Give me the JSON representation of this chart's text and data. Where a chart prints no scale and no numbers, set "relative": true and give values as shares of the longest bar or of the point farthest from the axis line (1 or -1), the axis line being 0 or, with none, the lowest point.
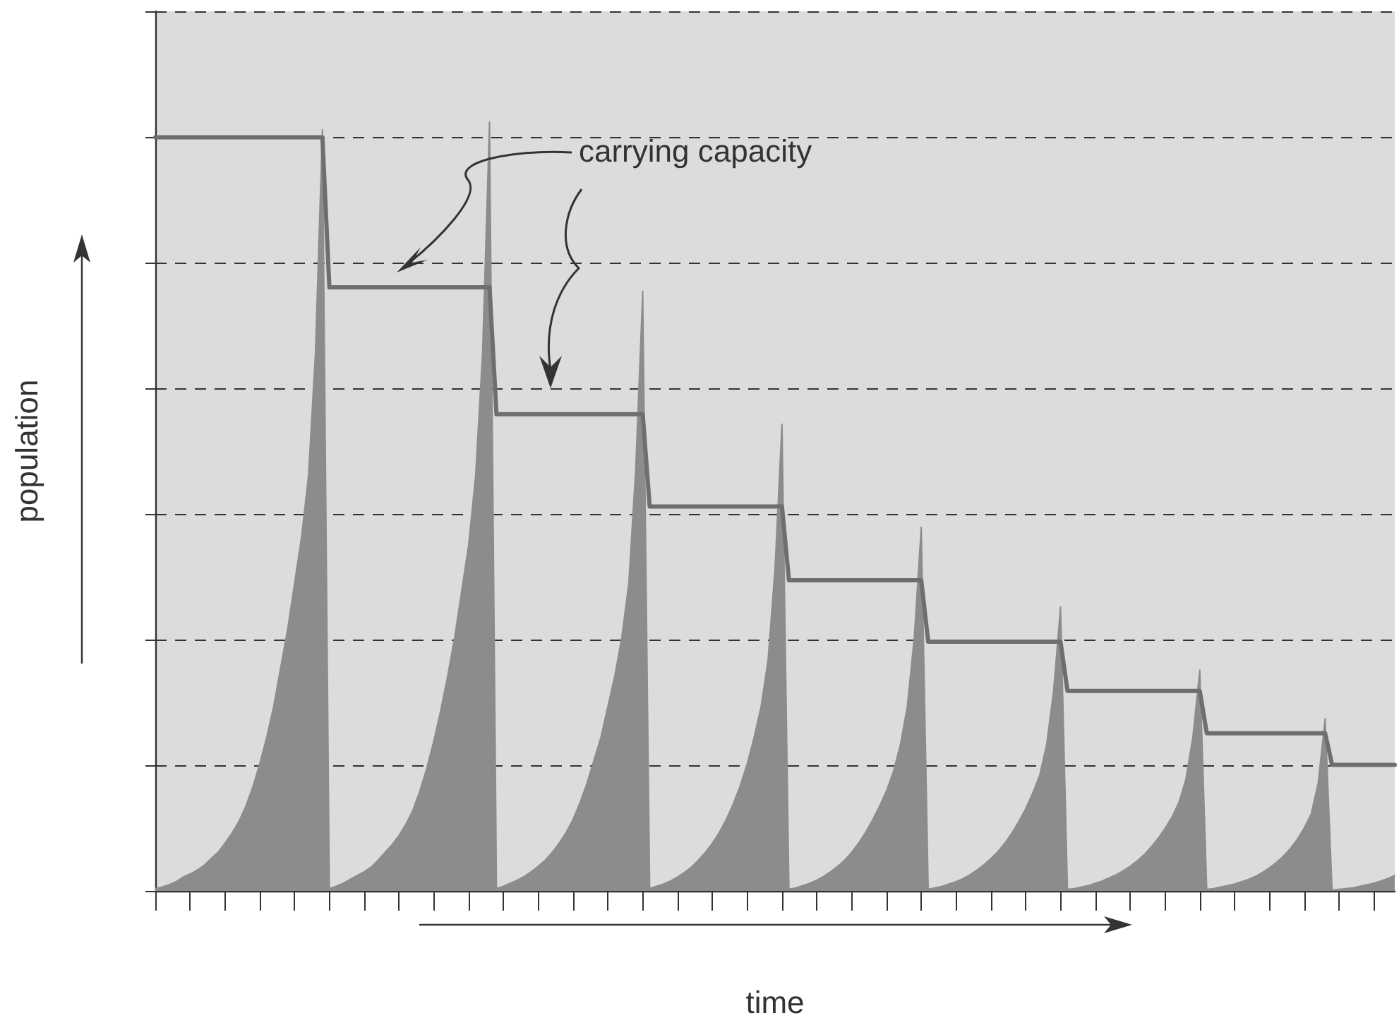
{
  "chart_data": {
    "type": "area",
    "relative": true,
    "xlabel": "time",
    "ylabel": "population",
    "grid": "y",
    "marker": "none",
    "categories": [
      null,
      null,
      null,
      null,
      null,
      null,
      null,
      null,
      null,
      null,
      null,
      null,
      null,
      null,
      null,
      null,
      null,
      null,
      null,
      null,
      null,
      null,
      null,
      null,
      null,
      null,
      null,
      null,
      null,
      null,
      null,
      null,
      null,
      null,
      null,
      null,
      null,
      null,
      null,
      null,
      null,
      null,
      null,
      null,
      null,
      null,
      null,
      null,
      null,
      null,
      null,
      null,
      null,
      null,
      null,
      null,
      null,
      null,
      null,
      null,
      null,
      null,
      null,
      null,
      null,
      null,
      null,
      null,
      null,
      null,
      null,
      null,
      null,
      null,
      null,
      null,
      null,
      null,
      null,
      null,
      null,
      null,
      null,
      null,
      null,
      null,
      null,
      null,
      null,
      null,
      null,
      null,
      null,
      null,
      null,
      null,
      null,
      null,
      null,
      null,
      null,
      null,
      null,
      null,
      null,
      null,
      null,
      null,
      null,
      null,
      null,
      null,
      null,
      null,
      null,
      null,
      null,
      null,
      null,
      null,
      null,
      null,
      null,
      null,
      null,
      null,
      null,
      null,
      null,
      null,
      null,
      null,
      null,
      null,
      null,
      null,
      null,
      null,
      null,
      null,
      null,
      null,
      null,
      null,
      null,
      null,
      null,
      null,
      null,
      null,
      null,
      null,
      null,
      null,
      null,
      null,
      null,
      null,
      null,
      null,
      null,
      null,
      null,
      null,
      null,
      null,
      null,
      null,
      null,
      null,
      null,
      null,
      null,
      null,
      null,
      null,
      null,
      null,
      null
    ],
    "series": [
      {
        "color": "#8c8c8c",
        "values": [
          0.003,
          0.005,
          0.008,
          0.012,
          0.018,
          0.022,
          0.027,
          0.033,
          0.042,
          0.05,
          0.062,
          0.075,
          0.09,
          0.11,
          0.135,
          0.165,
          0.2,
          0.24,
          0.29,
          0.34,
          0.4,
          0.46,
          0.54,
          0.7,
          0.99,
          0.003,
          0.006,
          0.01,
          0.015,
          0.02,
          0.025,
          0.031,
          0.04,
          0.05,
          0.06,
          0.072,
          0.087,
          0.105,
          0.13,
          0.16,
          0.195,
          0.235,
          0.28,
          0.33,
          0.39,
          0.45,
          0.54,
          0.7,
          1.0,
          0.003,
          0.006,
          0.01,
          0.014,
          0.019,
          0.025,
          0.032,
          0.04,
          0.05,
          0.062,
          0.076,
          0.093,
          0.115,
          0.14,
          0.17,
          0.2,
          0.24,
          0.28,
          0.33,
          0.4,
          0.55,
          0.78,
          0.003,
          0.006,
          0.009,
          0.013,
          0.018,
          0.024,
          0.031,
          0.04,
          0.05,
          0.062,
          0.076,
          0.093,
          0.113,
          0.137,
          0.165,
          0.2,
          0.24,
          0.3,
          0.42,
          0.607,
          0.002,
          0.004,
          0.007,
          0.01,
          0.014,
          0.019,
          0.025,
          0.032,
          0.04,
          0.05,
          0.062,
          0.076,
          0.092,
          0.11,
          0.13,
          0.155,
          0.19,
          0.24,
          0.33,
          0.473,
          0.002,
          0.004,
          0.006,
          0.009,
          0.012,
          0.016,
          0.021,
          0.027,
          0.034,
          0.042,
          0.051,
          0.062,
          0.075,
          0.09,
          0.107,
          0.127,
          0.15,
          0.19,
          0.26,
          0.369,
          0.002,
          0.003,
          0.005,
          0.007,
          0.01,
          0.013,
          0.017,
          0.021,
          0.026,
          0.032,
          0.039,
          0.047,
          0.057,
          0.068,
          0.081,
          0.096,
          0.115,
          0.145,
          0.2,
          0.287,
          0.002,
          0.003,
          0.005,
          0.007,
          0.009,
          0.012,
          0.015,
          0.019,
          0.024,
          0.03,
          0.037,
          0.045,
          0.055,
          0.067,
          0.082,
          0.1,
          0.14,
          0.224,
          0.001,
          0.002,
          0.003,
          0.004,
          0.006,
          0.008,
          0.01,
          0.013,
          0.016,
          0.02
        ]
      },
      {
        "name": "carrying capacity",
        "type": "line",
        "color": "#6e6e6e",
        "values": [
          0.98,
          0.98,
          0.98,
          0.98,
          0.98,
          0.98,
          0.98,
          0.98,
          0.98,
          0.98,
          0.98,
          0.98,
          0.98,
          0.98,
          0.98,
          0.98,
          0.98,
          0.98,
          0.98,
          0.98,
          0.98,
          0.98,
          0.98,
          0.98,
          0.98,
          0.785,
          0.785,
          0.785,
          0.785,
          0.785,
          0.785,
          0.785,
          0.785,
          0.785,
          0.785,
          0.785,
          0.785,
          0.785,
          0.785,
          0.785,
          0.785,
          0.785,
          0.785,
          0.785,
          0.785,
          0.785,
          0.785,
          0.785,
          0.785,
          0.62,
          0.62,
          0.62,
          0.62,
          0.62,
          0.62,
          0.62,
          0.62,
          0.62,
          0.62,
          0.62,
          0.62,
          0.62,
          0.62,
          0.62,
          0.62,
          0.62,
          0.62,
          0.62,
          0.62,
          0.62,
          0.62,
          0.5,
          0.5,
          0.5,
          0.5,
          0.5,
          0.5,
          0.5,
          0.5,
          0.5,
          0.5,
          0.5,
          0.5,
          0.5,
          0.5,
          0.5,
          0.5,
          0.5,
          0.5,
          0.5,
          0.5,
          0.404,
          0.404,
          0.404,
          0.404,
          0.404,
          0.404,
          0.404,
          0.404,
          0.404,
          0.404,
          0.404,
          0.404,
          0.404,
          0.404,
          0.404,
          0.404,
          0.404,
          0.404,
          0.404,
          0.404,
          0.324,
          0.324,
          0.324,
          0.324,
          0.324,
          0.324,
          0.324,
          0.324,
          0.324,
          0.324,
          0.324,
          0.324,
          0.324,
          0.324,
          0.324,
          0.324,
          0.324,
          0.324,
          0.324,
          0.324,
          0.26,
          0.26,
          0.26,
          0.26,
          0.26,
          0.26,
          0.26,
          0.26,
          0.26,
          0.26,
          0.26,
          0.26,
          0.26,
          0.26,
          0.26,
          0.26,
          0.26,
          0.26,
          0.26,
          0.26,
          0.205,
          0.205,
          0.205,
          0.205,
          0.205,
          0.205,
          0.205,
          0.205,
          0.205,
          0.205,
          0.205,
          0.205,
          0.205,
          0.205,
          0.205,
          0.205,
          0.205,
          0.205,
          0.164,
          0.164,
          0.164,
          0.164,
          0.164,
          0.164,
          0.164,
          0.164,
          0.164,
          0.164
        ]
      }
    ]
  }
}
